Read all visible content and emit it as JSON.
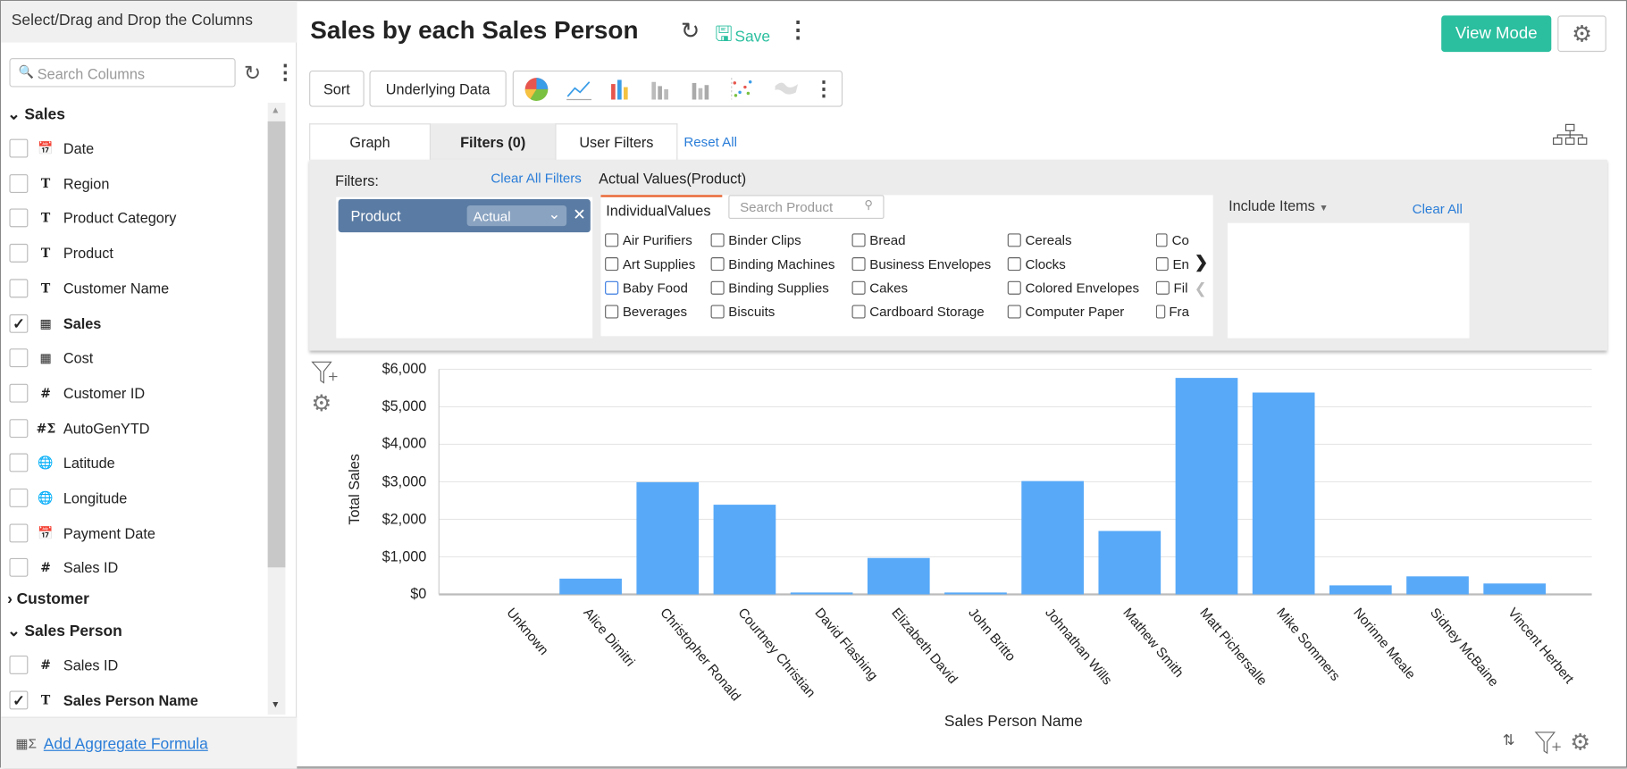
{
  "sidebar": {
    "header": "Select/Drag and Drop the Columns",
    "search_placeholder": "Search Columns",
    "groups": [
      {
        "label": "Sales",
        "expanded": true,
        "items": [
          {
            "label": "Date",
            "type": "date",
            "checked": false
          },
          {
            "label": "Region",
            "type": "T",
            "checked": false
          },
          {
            "label": "Product Category",
            "type": "T",
            "checked": false
          },
          {
            "label": "Product",
            "type": "T",
            "checked": false
          },
          {
            "label": "Customer Name",
            "type": "T",
            "checked": false
          },
          {
            "label": "Sales",
            "type": "currency",
            "checked": true
          },
          {
            "label": "Cost",
            "type": "currency",
            "checked": false
          },
          {
            "label": "Customer ID",
            "type": "#",
            "checked": false
          },
          {
            "label": "AutoGenYTD",
            "type": "formula",
            "checked": false
          },
          {
            "label": "Latitude",
            "type": "geo",
            "checked": false
          },
          {
            "label": "Longitude",
            "type": "geo",
            "checked": false
          },
          {
            "label": "Payment Date",
            "type": "date",
            "checked": false
          },
          {
            "label": "Sales ID",
            "type": "#",
            "checked": false
          }
        ]
      },
      {
        "label": "Customer",
        "expanded": false,
        "items": []
      },
      {
        "label": "Sales Person",
        "expanded": true,
        "items": [
          {
            "label": "Sales ID",
            "type": "#",
            "checked": false
          },
          {
            "label": "Sales Person Name",
            "type": "T",
            "checked": true
          }
        ]
      }
    ],
    "footer_link": "Add Aggregate Formula"
  },
  "header": {
    "title": "Sales by each Sales Person",
    "save": "Save",
    "view_mode": "View Mode",
    "accent": "#2bbf9f"
  },
  "toolbar": {
    "sort": "Sort",
    "underlying": "Underlying Data"
  },
  "tabs": [
    {
      "label": "Graph"
    },
    {
      "label": "Filters (0)",
      "active": true
    },
    {
      "label": "User Filters"
    }
  ],
  "reset_all": "Reset All",
  "filters": {
    "label": "Filters:",
    "clear_all_filters": "Clear All Filters",
    "chip": {
      "label": "Product",
      "mode": "Actual"
    },
    "values_title": "Actual Values(Product)",
    "subtab": "IndividualValues",
    "search_placeholder": "Search Product",
    "include": "Include Items",
    "clear_all": "Clear All",
    "columns": [
      [
        "Air Purifiers",
        "Art Supplies",
        "Baby Food",
        "Beverages"
      ],
      [
        "Binder Clips",
        "Binding Machines",
        "Binding Supplies",
        "Biscuits"
      ],
      [
        "Bread",
        "Business Envelopes",
        "Cakes",
        "Cardboard Storage"
      ],
      [
        "Cereals",
        "Clocks",
        "Colored Envelopes",
        "Computer Paper"
      ],
      [
        "Co",
        "En",
        "Fil",
        "Fra"
      ]
    ]
  },
  "chart_data": {
    "type": "bar",
    "xlabel": "Sales Person Name",
    "ylabel": "Total Sales",
    "categories": [
      "Unknown",
      "Alice Dimitri",
      "Christopher Ronald",
      "Courtney Christian",
      "David Flashing",
      "Elizabeth David",
      "John Britto",
      "Johnathan Wills",
      "Mathew Smith",
      "Matt Pichersalle",
      "Mike Sommers",
      "Norinne Meale",
      "Sidney McBaine",
      "Vincent Herbert"
    ],
    "values": [
      0,
      420,
      2990,
      2390,
      50,
      970,
      50,
      3020,
      1690,
      5770,
      5380,
      240,
      480,
      290
    ],
    "ylim": [
      0,
      6000
    ],
    "yticks": [
      "$0",
      "$1,000",
      "$2,000",
      "$3,000",
      "$4,000",
      "$5,000",
      "$6,000"
    ],
    "color": "#58a9f8",
    "grid": true,
    "legend": "none"
  }
}
